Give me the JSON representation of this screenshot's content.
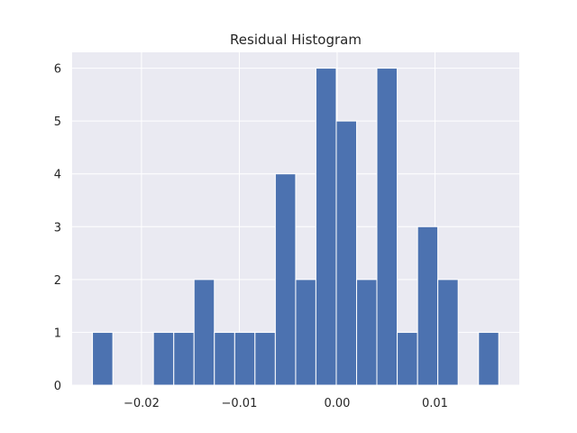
{
  "chart_data": {
    "type": "bar",
    "title": "Residual Histogram",
    "xlabel": "",
    "ylabel": "",
    "grid": true,
    "xlim": [
      -0.02709,
      0.01862
    ],
    "ylim": [
      0,
      6.3
    ],
    "bins": [
      {
        "x0": -0.02501,
        "x1": -0.02293,
        "count": 1
      },
      {
        "x0": -0.02293,
        "x1": -0.02086,
        "count": 0
      },
      {
        "x0": -0.02086,
        "x1": -0.01878,
        "count": 0
      },
      {
        "x0": -0.01878,
        "x1": -0.0167,
        "count": 1
      },
      {
        "x0": -0.0167,
        "x1": -0.01463,
        "count": 1
      },
      {
        "x0": -0.01463,
        "x1": -0.01255,
        "count": 2
      },
      {
        "x0": -0.01255,
        "x1": -0.01047,
        "count": 1
      },
      {
        "x0": -0.01047,
        "x1": -0.0084,
        "count": 1
      },
      {
        "x0": -0.0084,
        "x1": -0.00632,
        "count": 1
      },
      {
        "x0": -0.00632,
        "x1": -0.00424,
        "count": 4
      },
      {
        "x0": -0.00424,
        "x1": -0.00217,
        "count": 2
      },
      {
        "x0": -0.00217,
        "x1": -9e-05,
        "count": 6
      },
      {
        "x0": -9e-05,
        "x1": 0.00199,
        "count": 5
      },
      {
        "x0": 0.00199,
        "x1": 0.00406,
        "count": 2
      },
      {
        "x0": 0.00406,
        "x1": 0.00614,
        "count": 6
      },
      {
        "x0": 0.00614,
        "x1": 0.00822,
        "count": 1
      },
      {
        "x0": 0.00822,
        "x1": 0.01029,
        "count": 3
      },
      {
        "x0": 0.01029,
        "x1": 0.01237,
        "count": 2
      },
      {
        "x0": 0.01237,
        "x1": 0.01445,
        "count": 0
      },
      {
        "x0": 0.01445,
        "x1": 0.01652,
        "count": 1
      }
    ],
    "x_ticks": [
      {
        "value": -0.02,
        "label": "−0.02"
      },
      {
        "value": -0.01,
        "label": "−0.01"
      },
      {
        "value": 0.0,
        "label": "0.00"
      },
      {
        "value": 0.01,
        "label": "0.01"
      }
    ],
    "y_ticks": [
      {
        "value": 0,
        "label": "0"
      },
      {
        "value": 1,
        "label": "1"
      },
      {
        "value": 2,
        "label": "2"
      },
      {
        "value": 3,
        "label": "3"
      },
      {
        "value": 4,
        "label": "4"
      },
      {
        "value": 5,
        "label": "5"
      },
      {
        "value": 6,
        "label": "6"
      }
    ],
    "colors": {
      "bar": "#4c72b0",
      "bar_edge": "#ffffff",
      "plot_background": "#eaeaf2",
      "grid": "#ffffff",
      "text": "#262626"
    }
  }
}
